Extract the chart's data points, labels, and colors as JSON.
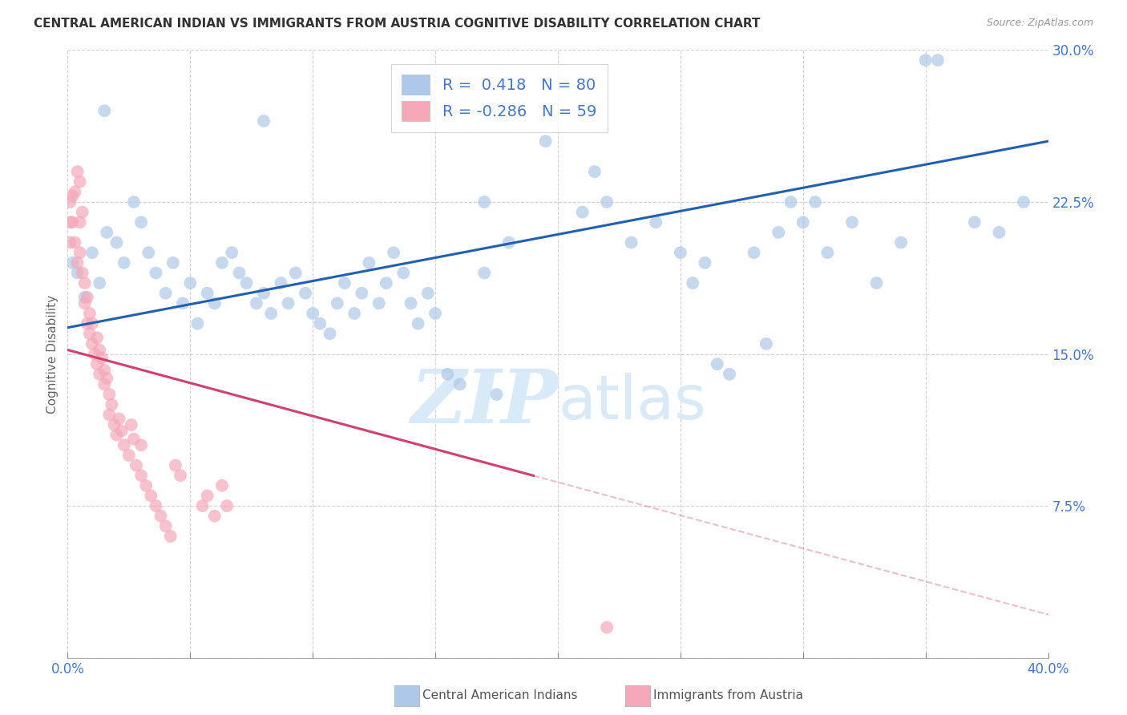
{
  "title": "CENTRAL AMERICAN INDIAN VS IMMIGRANTS FROM AUSTRIA COGNITIVE DISABILITY CORRELATION CHART",
  "source": "Source: ZipAtlas.com",
  "ylabel": "Cognitive Disability",
  "ytick_vals": [
    0.0,
    0.075,
    0.15,
    0.225,
    0.3
  ],
  "ytick_labels": [
    "",
    "7.5%",
    "15.0%",
    "22.5%",
    "30.0%"
  ],
  "xtick_vals": [
    0.0,
    0.05,
    0.1,
    0.15,
    0.2,
    0.25,
    0.3,
    0.35,
    0.4
  ],
  "xtick_labels": [
    "0.0%",
    "",
    "",
    "",
    "",
    "",
    "",
    "",
    "40.0%"
  ],
  "xmin": 0.0,
  "xmax": 0.4,
  "ymin": 0.0,
  "ymax": 0.3,
  "legend_R_blue": " 0.418",
  "legend_N_blue": "80",
  "legend_R_pink": "-0.286",
  "legend_N_pink": "59",
  "legend_label_blue": "Central American Indians",
  "legend_label_pink": "Immigrants from Austria",
  "blue_color": "#adc8e8",
  "blue_line_color": "#2060b0",
  "pink_color": "#f4a8b8",
  "pink_line_color": "#d04070",
  "watermark_color": "#d8eaf8",
  "background_color": "#ffffff",
  "grid_color": "#cccccc",
  "title_color": "#333333",
  "source_color": "#999999",
  "tick_color": "#4477cc",
  "ylabel_color": "#666666",
  "blue_points": [
    [
      0.002,
      0.195
    ],
    [
      0.004,
      0.19
    ],
    [
      0.007,
      0.178
    ],
    [
      0.01,
      0.2
    ],
    [
      0.013,
      0.185
    ],
    [
      0.016,
      0.21
    ],
    [
      0.02,
      0.205
    ],
    [
      0.023,
      0.195
    ],
    [
      0.027,
      0.225
    ],
    [
      0.03,
      0.215
    ],
    [
      0.033,
      0.2
    ],
    [
      0.036,
      0.19
    ],
    [
      0.04,
      0.18
    ],
    [
      0.043,
      0.195
    ],
    [
      0.047,
      0.175
    ],
    [
      0.05,
      0.185
    ],
    [
      0.053,
      0.165
    ],
    [
      0.057,
      0.18
    ],
    [
      0.06,
      0.175
    ],
    [
      0.063,
      0.195
    ],
    [
      0.067,
      0.2
    ],
    [
      0.07,
      0.19
    ],
    [
      0.073,
      0.185
    ],
    [
      0.077,
      0.175
    ],
    [
      0.08,
      0.18
    ],
    [
      0.083,
      0.17
    ],
    [
      0.087,
      0.185
    ],
    [
      0.09,
      0.175
    ],
    [
      0.093,
      0.19
    ],
    [
      0.097,
      0.18
    ],
    [
      0.1,
      0.17
    ],
    [
      0.103,
      0.165
    ],
    [
      0.107,
      0.16
    ],
    [
      0.11,
      0.175
    ],
    [
      0.113,
      0.185
    ],
    [
      0.117,
      0.17
    ],
    [
      0.12,
      0.18
    ],
    [
      0.123,
      0.195
    ],
    [
      0.127,
      0.175
    ],
    [
      0.13,
      0.185
    ],
    [
      0.133,
      0.2
    ],
    [
      0.137,
      0.19
    ],
    [
      0.14,
      0.175
    ],
    [
      0.143,
      0.165
    ],
    [
      0.147,
      0.18
    ],
    [
      0.15,
      0.17
    ],
    [
      0.155,
      0.14
    ],
    [
      0.16,
      0.135
    ],
    [
      0.17,
      0.19
    ],
    [
      0.18,
      0.205
    ],
    [
      0.195,
      0.255
    ],
    [
      0.21,
      0.22
    ],
    [
      0.215,
      0.24
    ],
    [
      0.22,
      0.225
    ],
    [
      0.23,
      0.205
    ],
    [
      0.24,
      0.215
    ],
    [
      0.25,
      0.2
    ],
    [
      0.255,
      0.185
    ],
    [
      0.26,
      0.195
    ],
    [
      0.265,
      0.145
    ],
    [
      0.27,
      0.14
    ],
    [
      0.28,
      0.2
    ],
    [
      0.285,
      0.155
    ],
    [
      0.29,
      0.21
    ],
    [
      0.295,
      0.225
    ],
    [
      0.3,
      0.215
    ],
    [
      0.305,
      0.225
    ],
    [
      0.31,
      0.2
    ],
    [
      0.32,
      0.215
    ],
    [
      0.33,
      0.185
    ],
    [
      0.34,
      0.205
    ],
    [
      0.35,
      0.295
    ],
    [
      0.355,
      0.295
    ],
    [
      0.37,
      0.215
    ],
    [
      0.38,
      0.21
    ],
    [
      0.39,
      0.225
    ],
    [
      0.015,
      0.27
    ],
    [
      0.08,
      0.265
    ],
    [
      0.17,
      0.225
    ],
    [
      0.175,
      0.13
    ]
  ],
  "pink_points": [
    [
      0.001,
      0.225
    ],
    [
      0.002,
      0.215
    ],
    [
      0.003,
      0.205
    ],
    [
      0.004,
      0.195
    ],
    [
      0.005,
      0.215
    ],
    [
      0.005,
      0.2
    ],
    [
      0.006,
      0.19
    ],
    [
      0.007,
      0.185
    ],
    [
      0.007,
      0.175
    ],
    [
      0.008,
      0.178
    ],
    [
      0.008,
      0.165
    ],
    [
      0.009,
      0.17
    ],
    [
      0.009,
      0.16
    ],
    [
      0.01,
      0.155
    ],
    [
      0.01,
      0.165
    ],
    [
      0.011,
      0.15
    ],
    [
      0.012,
      0.145
    ],
    [
      0.012,
      0.158
    ],
    [
      0.013,
      0.14
    ],
    [
      0.013,
      0.152
    ],
    [
      0.014,
      0.148
    ],
    [
      0.015,
      0.142
    ],
    [
      0.015,
      0.135
    ],
    [
      0.016,
      0.138
    ],
    [
      0.017,
      0.13
    ],
    [
      0.017,
      0.12
    ],
    [
      0.018,
      0.125
    ],
    [
      0.019,
      0.115
    ],
    [
      0.02,
      0.11
    ],
    [
      0.021,
      0.118
    ],
    [
      0.022,
      0.112
    ],
    [
      0.023,
      0.105
    ],
    [
      0.025,
      0.1
    ],
    [
      0.026,
      0.115
    ],
    [
      0.027,
      0.108
    ],
    [
      0.028,
      0.095
    ],
    [
      0.03,
      0.09
    ],
    [
      0.03,
      0.105
    ],
    [
      0.032,
      0.085
    ],
    [
      0.034,
      0.08
    ],
    [
      0.036,
      0.075
    ],
    [
      0.038,
      0.07
    ],
    [
      0.005,
      0.235
    ],
    [
      0.006,
      0.22
    ],
    [
      0.04,
      0.065
    ],
    [
      0.042,
      0.06
    ],
    [
      0.044,
      0.095
    ],
    [
      0.046,
      0.09
    ],
    [
      0.055,
      0.075
    ],
    [
      0.057,
      0.08
    ],
    [
      0.06,
      0.07
    ],
    [
      0.063,
      0.085
    ],
    [
      0.065,
      0.075
    ],
    [
      0.004,
      0.24
    ],
    [
      0.003,
      0.23
    ],
    [
      0.002,
      0.228
    ],
    [
      0.001,
      0.215
    ],
    [
      0.22,
      0.015
    ],
    [
      0.001,
      0.205
    ]
  ]
}
